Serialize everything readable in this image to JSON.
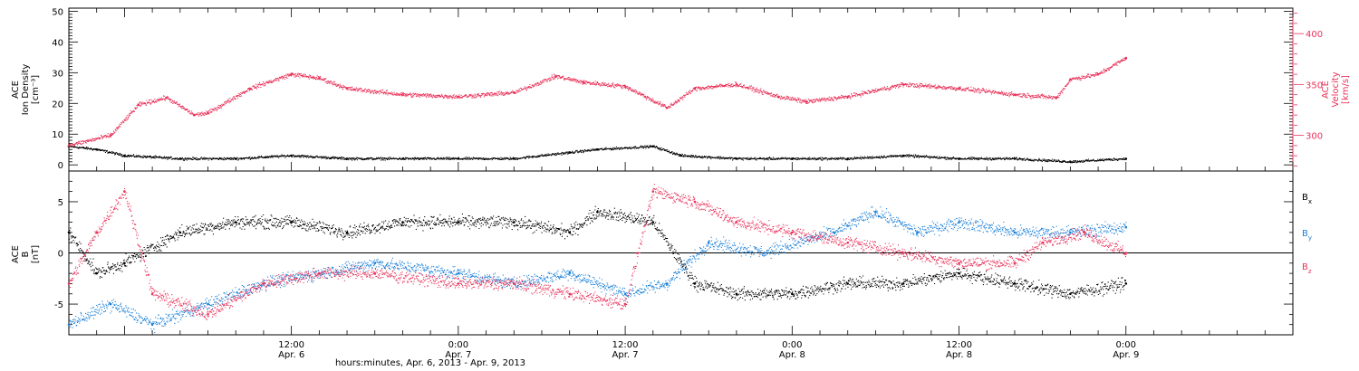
{
  "xaxis": {
    "title": "hours:minutes, Apr. 6, 2013 - Apr. 9, 2013",
    "range": [
      "2013-04-05 20:00",
      "2013-04-09 12:00"
    ],
    "ticks": [
      {
        "at": "2013-04-06 12:00",
        "time": "12:00",
        "date": "Apr. 6"
      },
      {
        "at": "2013-04-07 00:00",
        "time": "0:00",
        "date": "Apr. 7"
      },
      {
        "at": "2013-04-07 12:00",
        "time": "12:00",
        "date": "Apr. 7"
      },
      {
        "at": "2013-04-08 00:00",
        "time": "0:00",
        "date": "Apr. 8"
      },
      {
        "at": "2013-04-08 12:00",
        "time": "12:00",
        "date": "Apr. 8"
      },
      {
        "at": "2013-04-09 00:00",
        "time": "0:00",
        "date": "Apr. 9"
      }
    ]
  },
  "colors": {
    "density": "#000000",
    "velocity": "#e8325a",
    "bx": "#000000",
    "by": "#1a7fd8",
    "bz": "#e8325a"
  },
  "chart_data": [
    {
      "type": "scatter",
      "panel": "top",
      "ylabel_left": [
        "ACE",
        "Ion Density",
        "[cm⁻³]"
      ],
      "ylabel_right": [
        "ACE",
        "Velocity",
        "[km/s]"
      ],
      "ylim_left": [
        -2,
        51
      ],
      "yticks_left": [
        0,
        10,
        20,
        30,
        40,
        50
      ],
      "ylim_right": [
        265,
        425
      ],
      "yticks_right": [
        300,
        350,
        400
      ],
      "series": [
        {
          "key": "density",
          "axis": "left",
          "x": [
            "2013-04-05 20:00",
            "2013-04-05 22:00",
            "2013-04-06 00:00",
            "2013-04-06 04:00",
            "2013-04-06 08:00",
            "2013-04-06 12:00",
            "2013-04-06 16:00",
            "2013-04-06 20:00",
            "2013-04-07 00:00",
            "2013-04-07 04:00",
            "2013-04-07 08:00",
            "2013-04-07 10:00",
            "2013-04-07 14:00",
            "2013-04-07 16:00",
            "2013-04-07 20:00",
            "2013-04-08 00:00",
            "2013-04-08 04:00",
            "2013-04-08 08:00",
            "2013-04-08 12:00",
            "2013-04-08 16:00",
            "2013-04-08 20:00",
            "2013-04-09 00:00"
          ],
          "y": [
            6,
            5,
            3,
            2,
            2,
            3,
            2,
            2,
            2,
            2,
            4,
            5,
            6,
            3,
            2,
            2,
            2,
            3,
            2,
            2,
            1,
            2
          ]
        },
        {
          "key": "velocity",
          "axis": "right",
          "x": [
            "2013-04-05 20:00",
            "2013-04-05 23:00",
            "2013-04-06 01:00",
            "2013-04-06 03:00",
            "2013-04-06 05:00",
            "2013-04-06 06:00",
            "2013-04-06 09:00",
            "2013-04-06 12:00",
            "2013-04-06 14:00",
            "2013-04-06 16:00",
            "2013-04-06 20:00",
            "2013-04-07 00:00",
            "2013-04-07 04:00",
            "2013-04-07 07:00",
            "2013-04-07 09:00",
            "2013-04-07 12:00",
            "2013-04-07 15:00",
            "2013-04-07 17:00",
            "2013-04-07 20:00",
            "2013-04-07 23:00",
            "2013-04-08 01:00",
            "2013-04-08 04:00",
            "2013-04-08 08:00",
            "2013-04-08 12:00",
            "2013-04-08 16:00",
            "2013-04-08 19:00",
            "2013-04-08 20:00",
            "2013-04-08 22:00",
            "2013-04-09 00:00"
          ],
          "y": [
            290,
            300,
            330,
            337,
            320,
            322,
            346,
            360,
            356,
            346,
            340,
            338,
            342,
            358,
            352,
            348,
            327,
            346,
            350,
            338,
            333,
            338,
            350,
            346,
            340,
            337,
            355,
            360,
            376
          ]
        }
      ]
    },
    {
      "type": "scatter",
      "panel": "bottom",
      "ylabel_left": [
        "ACE",
        "B",
        "[nT]"
      ],
      "ylim": [
        -8,
        8
      ],
      "yticks": [
        -5,
        0,
        5
      ],
      "zero_line": true,
      "series": [
        {
          "key": "bx",
          "name": "Bx",
          "x": [
            "2013-04-05 20:00",
            "2013-04-05 22:00",
            "2013-04-06 00:00",
            "2013-04-06 04:00",
            "2013-04-06 08:00",
            "2013-04-06 12:00",
            "2013-04-06 16:00",
            "2013-04-06 20:00",
            "2013-04-07 00:00",
            "2013-04-07 04:00",
            "2013-04-07 08:00",
            "2013-04-07 10:00",
            "2013-04-07 14:00",
            "2013-04-07 17:00",
            "2013-04-07 20:00",
            "2013-04-08 00:00",
            "2013-04-08 04:00",
            "2013-04-08 08:00",
            "2013-04-08 12:00",
            "2013-04-08 16:00",
            "2013-04-08 20:00",
            "2013-04-09 00:00"
          ],
          "y": [
            2,
            -2,
            -1,
            2,
            3,
            3,
            2,
            3,
            3,
            3,
            2,
            4,
            3,
            -3,
            -4,
            -4,
            -3,
            -3,
            -2,
            -3,
            -4,
            -3
          ]
        },
        {
          "key": "by",
          "name": "By",
          "x": [
            "2013-04-05 20:00",
            "2013-04-05 23:00",
            "2013-04-06 02:00",
            "2013-04-06 06:00",
            "2013-04-06 10:00",
            "2013-04-06 14:00",
            "2013-04-06 18:00",
            "2013-04-07 00:00",
            "2013-04-07 04:00",
            "2013-04-07 08:00",
            "2013-04-07 12:00",
            "2013-04-07 15:00",
            "2013-04-07 18:00",
            "2013-04-07 22:00",
            "2013-04-08 03:00",
            "2013-04-08 06:00",
            "2013-04-08 09:00",
            "2013-04-08 12:00",
            "2013-04-08 16:00",
            "2013-04-08 20:00",
            "2013-04-09 00:00"
          ],
          "y": [
            -7,
            -5,
            -7,
            -5,
            -3,
            -2,
            -1,
            -2,
            -3,
            -2,
            -4,
            -3,
            1,
            0,
            2,
            4,
            2,
            3,
            2,
            2,
            2.5
          ]
        },
        {
          "key": "bz",
          "name": "Bz",
          "x": [
            "2013-04-05 20:00",
            "2013-04-05 22:00",
            "2013-04-06 00:00",
            "2013-04-06 02:00",
            "2013-04-06 06:00",
            "2013-04-06 10:00",
            "2013-04-06 14:00",
            "2013-04-06 18:00",
            "2013-04-07 00:00",
            "2013-04-07 04:00",
            "2013-04-07 08:00",
            "2013-04-07 12:00",
            "2013-04-07 14:00",
            "2013-04-07 17:00",
            "2013-04-07 20:00",
            "2013-04-08 00:00",
            "2013-04-08 04:00",
            "2013-04-08 08:00",
            "2013-04-08 12:00",
            "2013-04-08 16:00",
            "2013-04-08 18:00",
            "2013-04-08 21:00",
            "2013-04-09 00:00"
          ],
          "y": [
            -3,
            2,
            6,
            -4,
            -6,
            -3,
            -2,
            -2,
            -3,
            -3,
            -4,
            -5,
            6,
            5,
            3,
            2,
            1,
            0,
            -1,
            -1,
            1,
            2,
            0
          ]
        }
      ]
    }
  ]
}
